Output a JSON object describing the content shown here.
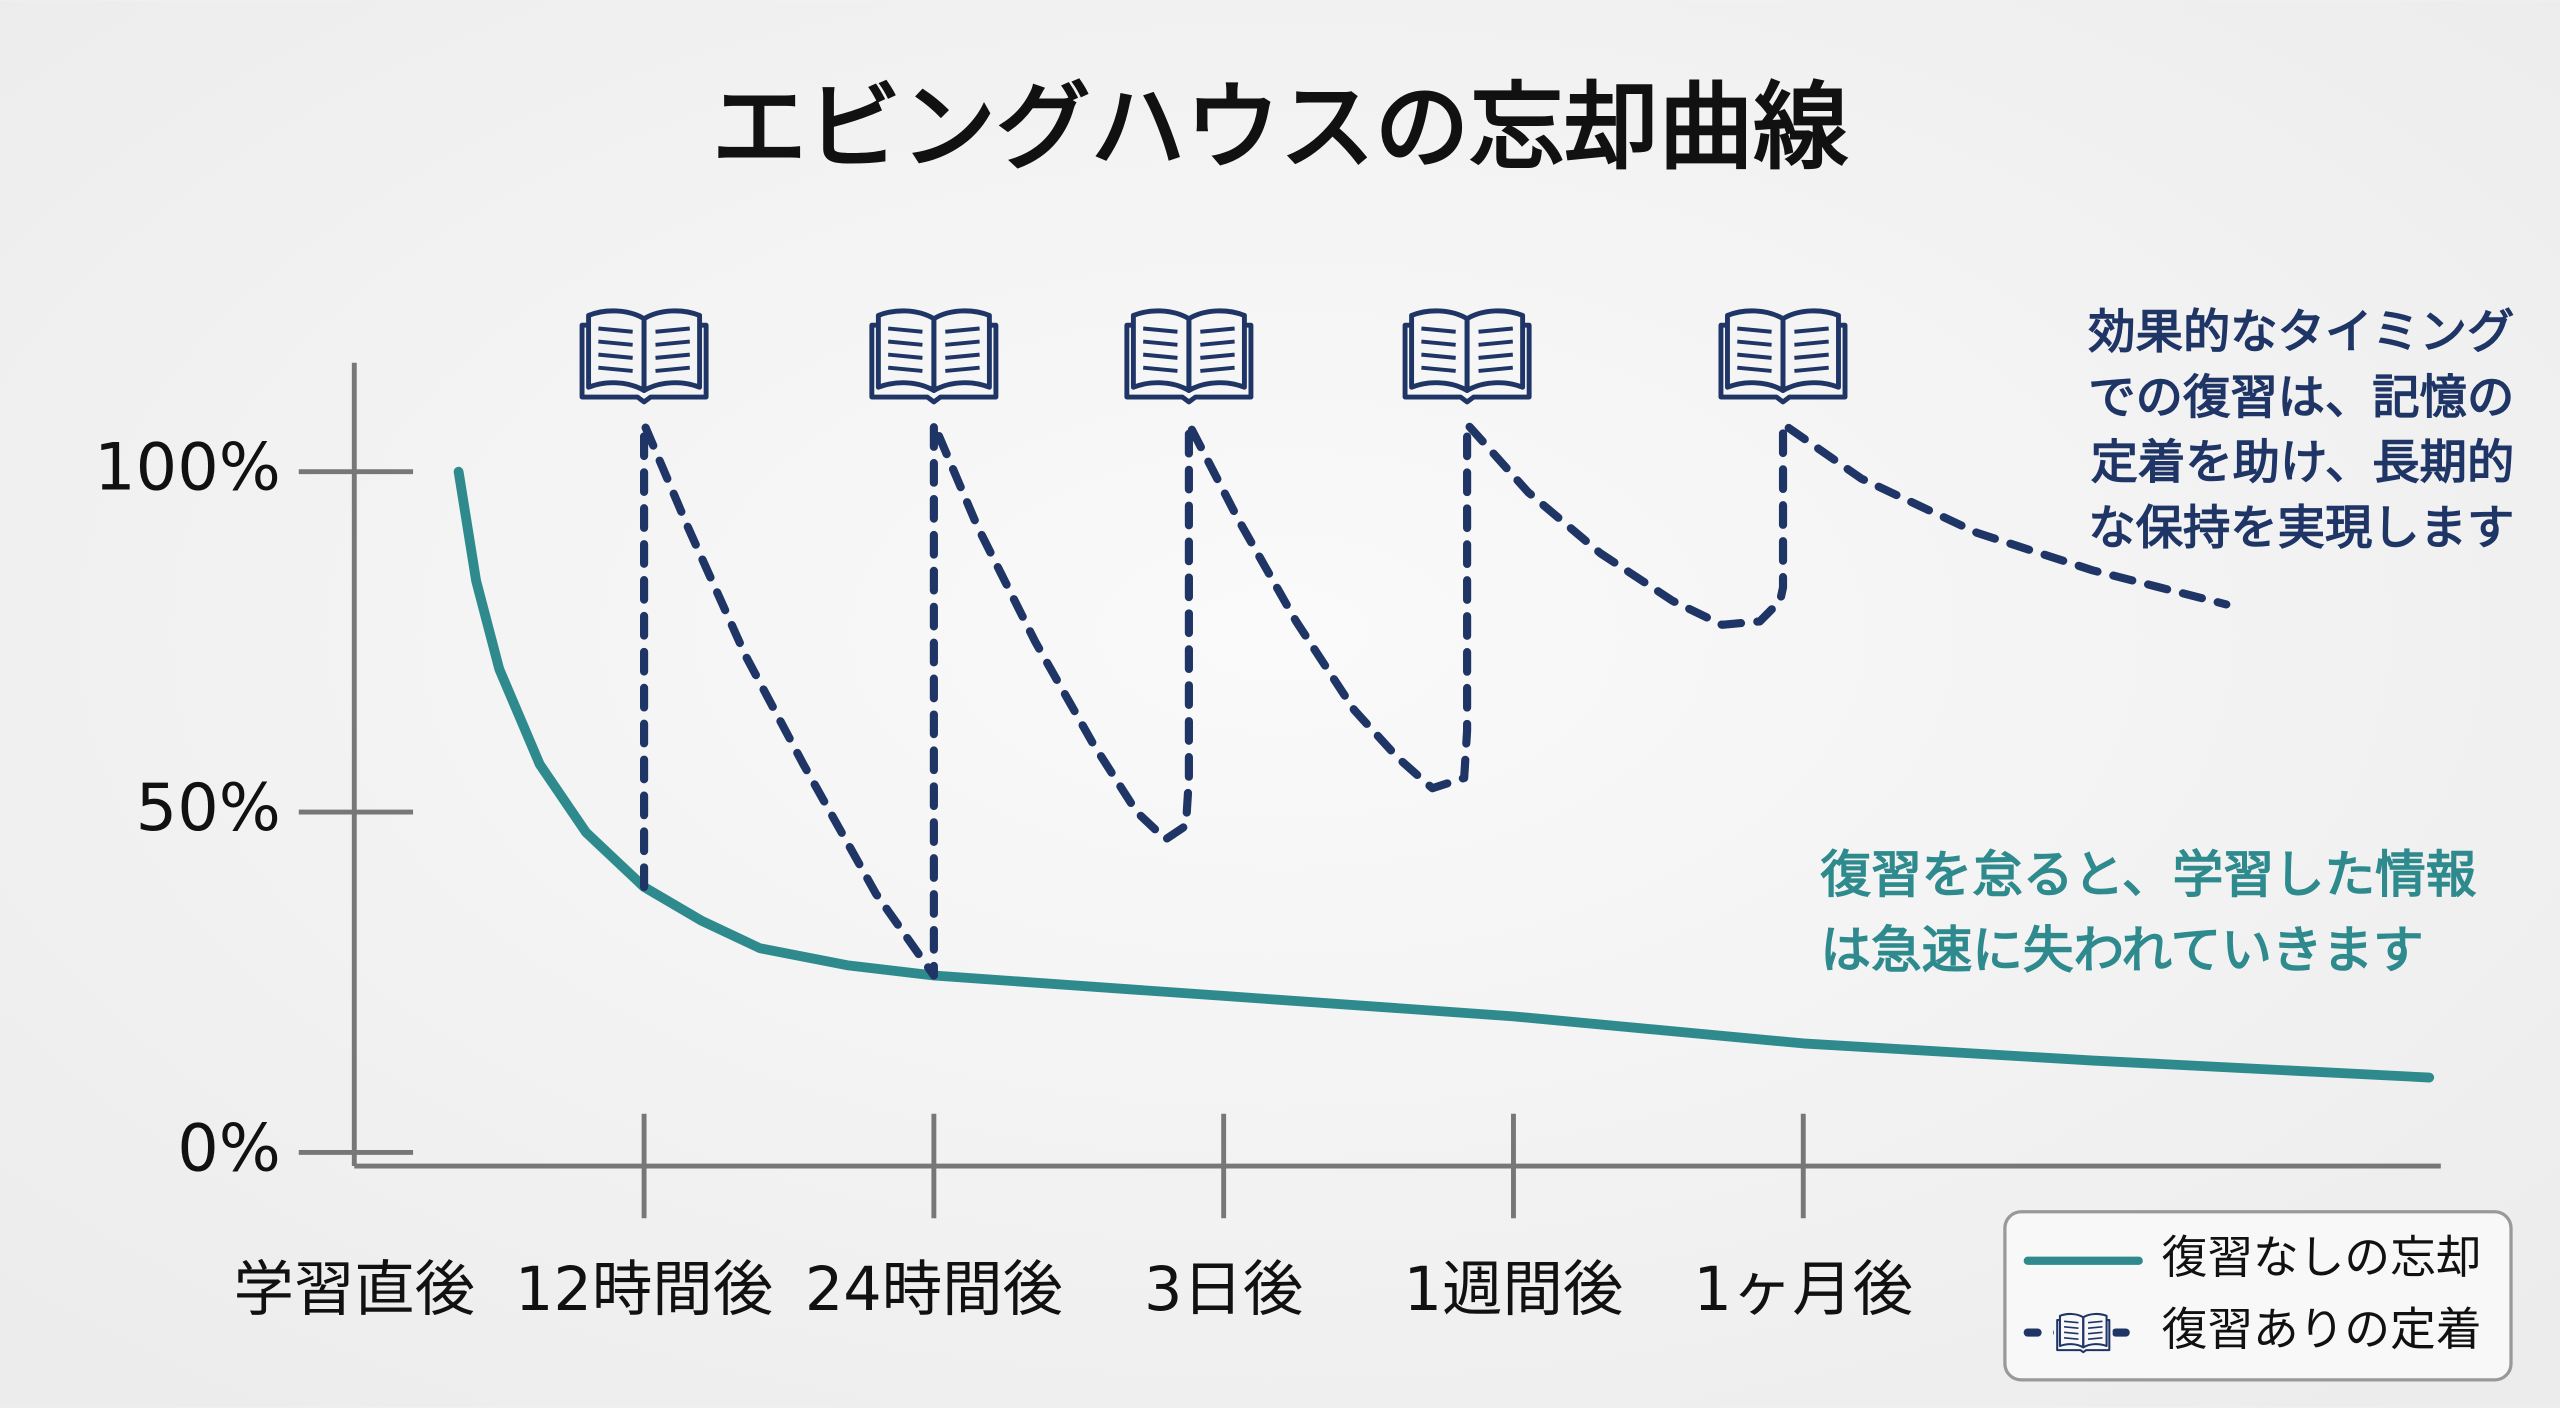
{
  "chart_data": {
    "type": "line",
    "title": "エビングハウスの忘却曲線",
    "xlim": [
      0,
      7.2
    ],
    "xticks": [
      {
        "value": 0,
        "label": "学習直後"
      },
      {
        "value": 1,
        "label": "12時間後"
      },
      {
        "value": 2,
        "label": "24時間後"
      },
      {
        "value": 3,
        "label": "3日後"
      },
      {
        "value": 4,
        "label": "1週間後"
      },
      {
        "value": 5,
        "label": "1ヶ月後"
      }
    ],
    "ylim": [
      -2,
      116
    ],
    "yticks": [
      {
        "value": 0,
        "label": "0%"
      },
      {
        "value": 50,
        "label": "50%"
      },
      {
        "value": 100,
        "label": "100%"
      }
    ],
    "series": [
      {
        "name": "復習なしの忘却",
        "color": "#2e8a8d",
        "style": "solid",
        "x": [
          0.36,
          0.42,
          0.5,
          0.64,
          0.8,
          1,
          1.2,
          1.4,
          1.7,
          2,
          3,
          4,
          5,
          6,
          7.16
        ],
        "values": [
          100,
          84,
          71,
          57,
          47,
          39,
          34,
          30,
          27.5,
          26,
          23,
          20,
          16,
          13.5,
          11
        ]
      },
      {
        "name": "復習ありの定着",
        "color": "#1f3566",
        "style": "dashed",
        "marker": "book",
        "x": [
          1,
          1,
          1.15,
          1.35,
          1.55,
          1.8,
          2,
          2,
          2.15,
          2.35,
          2.55,
          2.7,
          2.8,
          2.87,
          2.88,
          2.88,
          3.05,
          3.25,
          3.45,
          3.6,
          3.72,
          3.83,
          3.84,
          3.84,
          4.05,
          4.3,
          4.55,
          4.72,
          4.85,
          4.92,
          4.93,
          4.93,
          5.2,
          5.6,
          6.0,
          6.46
        ],
        "values": [
          39,
          107,
          92,
          73,
          57,
          38,
          26,
          107,
          92,
          75,
          60,
          50,
          46,
          48,
          55,
          107,
          93,
          78,
          65,
          58,
          53.5,
          55,
          62,
          107,
          97,
          88,
          81,
          77.5,
          78,
          81,
          83,
          107,
          99,
          91,
          85.5,
          80.5
        ]
      }
    ],
    "annotations": [
      {
        "color": "#1f3566",
        "lines": [
          "効果的なタイミング",
          "での復習は、記憶の",
          "定着を助け、長期的",
          "な保持を実現します"
        ]
      },
      {
        "color": "#2e8a8d",
        "lines": [
          "復習を怠ると、学習した情報",
          "は急速に失われていきます"
        ]
      }
    ],
    "legend": "lower right"
  }
}
